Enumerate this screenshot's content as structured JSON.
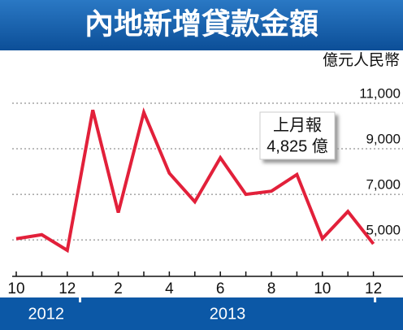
{
  "chart_data": {
    "type": "line",
    "title": "內地新增貸款金額",
    "y_unit": "億元人民幣",
    "categories": [
      "10",
      null,
      "12",
      null,
      "2",
      null,
      "4",
      null,
      "6",
      null,
      "8",
      null,
      "10",
      null,
      "12"
    ],
    "x_groups": [
      "2012",
      "2013"
    ],
    "series": [
      {
        "name": "新增貸款",
        "color": "#e2203a",
        "values": [
          5050,
          5229,
          4543,
          10700,
          6200,
          10600,
          7929,
          6674,
          8605,
          6999,
          7139,
          7870,
          5061,
          6246,
          4825
        ]
      }
    ],
    "ylim": [
      3400,
      11500
    ],
    "yticks": [
      {
        "value": 5000,
        "label": "5,000"
      },
      {
        "value": 7000,
        "label": "7,000"
      },
      {
        "value": 9000,
        "label": "9,000"
      },
      {
        "value": 11000,
        "label": "11,000"
      }
    ],
    "grid": true,
    "annotation": [
      "上月報",
      "4,825 億"
    ]
  }
}
